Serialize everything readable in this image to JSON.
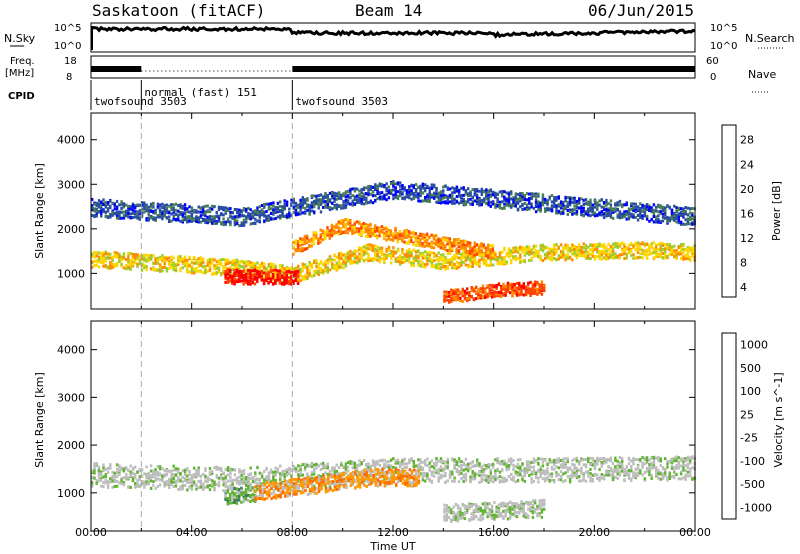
{
  "header": {
    "station": "Saskatoon (fitACF)",
    "beam": "Beam 14",
    "date": "06/Jun/2015"
  },
  "left_labels": {
    "nsky": "N.Sky",
    "freq": "Freq.",
    "freq_unit": "[MHz]",
    "cpid": "CPID"
  },
  "right_labels": {
    "nsearch": "N.Search",
    "nave": "Nave"
  },
  "cpid_modes": [
    {
      "label": "twofsound 3503",
      "start": 0.0,
      "end": 2.0
    },
    {
      "label": "normal (fast) 151",
      "start": 2.0,
      "end": 8.0
    },
    {
      "label": "twofsound 3503",
      "start": 8.0,
      "end": 24.0
    }
  ],
  "noise_panel": {
    "left_ticks": [
      "10^5",
      "10^0"
    ],
    "right_ticks": [
      "10^5",
      "10^0"
    ]
  },
  "freq_panel": {
    "left_ticks": [
      "18",
      "8"
    ],
    "right_ticks": [
      "60",
      "0"
    ]
  },
  "colors": {
    "power": [
      "#0000ff",
      "#2a4fa0",
      "#4a7f4f",
      "#9acd32",
      "#ffd700",
      "#ff8c00",
      "#ff4500",
      "#ff0000"
    ],
    "velocity": [
      "#3050c0",
      "#3b7d5a",
      "#5fb52e",
      "#bebebe",
      "#bebebe",
      "#ff9900",
      "#ff6a00",
      "#ff0000"
    ]
  },
  "chart_data": [
    {
      "type": "heatmap",
      "title": "",
      "xlabel": "",
      "ylabel": "Slant Range [km]",
      "xlim": [
        0,
        24
      ],
      "ylim": [
        200,
        4600
      ],
      "y_ticks": [
        1000,
        2000,
        3000,
        4000
      ],
      "colorbar_label": "Power [dB]",
      "colorbar_ticks": [
        "28",
        "24",
        "20",
        "16",
        "12",
        "8",
        "4"
      ],
      "bands": [
        {
          "x": [
            0,
            6,
            8,
            11,
            14,
            18,
            22,
            24
          ],
          "y": [
            1350,
            1150,
            1000,
            1500,
            1300,
            1500,
            1550,
            1500
          ],
          "halfwidth": 180,
          "level": 4
        },
        {
          "x": [
            5.3,
            8.2
          ],
          "y": [
            950,
            950
          ],
          "halfwidth": 160,
          "level": 7
        },
        {
          "x": [
            8,
            10,
            12,
            14,
            16
          ],
          "y": [
            1600,
            2100,
            1900,
            1700,
            1500
          ],
          "halfwidth": 150,
          "level": 5
        },
        {
          "x": [
            14,
            16,
            18
          ],
          "y": [
            500,
            650,
            700
          ],
          "halfwidth": 150,
          "level": 6
        },
        {
          "x": [
            0,
            6,
            12,
            18,
            24
          ],
          "y": [
            2500,
            2300,
            2900,
            2600,
            2300
          ],
          "halfwidth": 200,
          "level": 1
        }
      ]
    },
    {
      "type": "heatmap",
      "title": "",
      "xlabel": "Time UT",
      "ylabel": "Slant Range [km]",
      "xlim": [
        0,
        24
      ],
      "ylim": [
        200,
        4600
      ],
      "y_ticks": [
        1000,
        2000,
        3000,
        4000
      ],
      "x_ticks": [
        "00:00",
        "04:00",
        "08:00",
        "12:00",
        "16:00",
        "20:00",
        "00:00"
      ],
      "colorbar_label": "Velocity [m s^-1]",
      "colorbar_ticks": [
        "1000",
        "500",
        "100",
        "25",
        "-25",
        "-100",
        "-500",
        "-1000"
      ],
      "bands": [
        {
          "x": [
            0,
            6,
            12,
            18,
            24
          ],
          "y": [
            1400,
            1300,
            1500,
            1500,
            1550
          ],
          "halfwidth": 250,
          "level": 3
        },
        {
          "x": [
            5.3,
            6.5
          ],
          "y": [
            950,
            1000
          ],
          "halfwidth": 160,
          "level": 2
        },
        {
          "x": [
            6.5,
            9,
            11,
            13
          ],
          "y": [
            1050,
            1200,
            1350,
            1350
          ],
          "halfwidth": 180,
          "level": 5
        },
        {
          "x": [
            14,
            18
          ],
          "y": [
            600,
            700
          ],
          "halfwidth": 180,
          "level": 3
        }
      ]
    }
  ]
}
